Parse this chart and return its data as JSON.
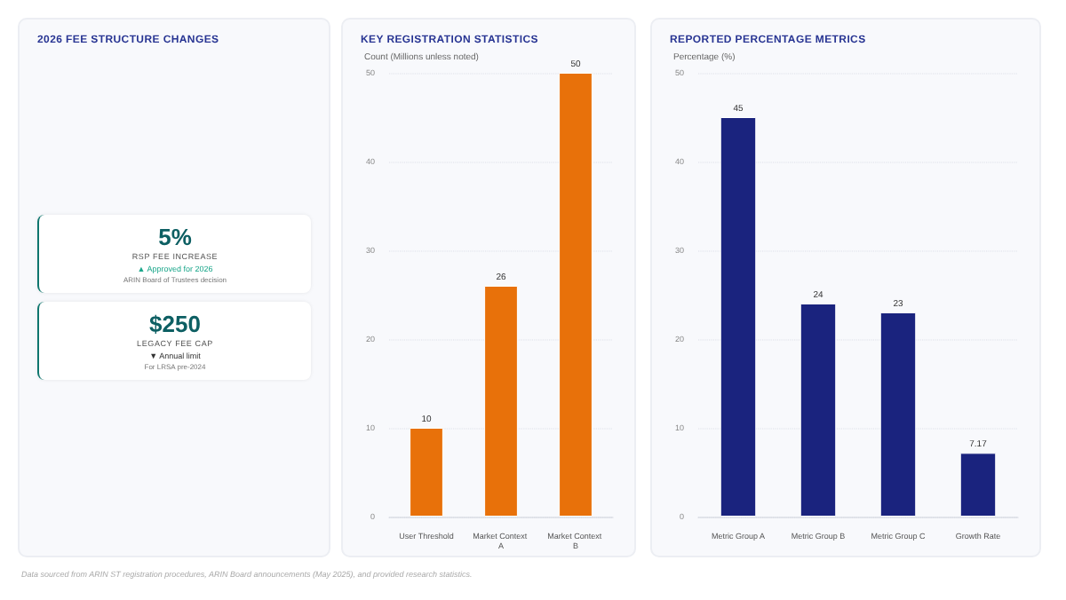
{
  "chart_data": [
    {
      "type": "other",
      "title": "2026 FEE STRUCTURE CHANGES",
      "annotations": [
        "5%",
        "RSP FEE INCREASE",
        "▲ Approved for 2026",
        "ARIN Board of Trustees decision",
        "$250",
        "LEGACY FEE CAP",
        "▼ Annual limit",
        "For LRSA pre-2024"
      ]
    },
    {
      "type": "bar",
      "title": "KEY REGISTRATION STATISTICS",
      "ylabel": "Count (Millions unless noted)",
      "categories": [
        "User Threshold",
        "Market Context A",
        "Market Context B"
      ],
      "values": [
        10,
        26,
        50
      ],
      "color": "#e8710a",
      "ylim": [
        0,
        50
      ],
      "yticks": [
        0,
        10,
        20,
        30,
        40,
        50
      ],
      "grid": "y",
      "data_labels": true
    },
    {
      "type": "bar",
      "title": "REPORTED PERCENTAGE METRICS",
      "ylabel": "Percentage (%)",
      "categories": [
        "Metric Group A",
        "Metric Group B",
        "Metric Group C",
        "Growth Rate"
      ],
      "values": [
        45,
        24,
        23,
        7.17
      ],
      "color": "#1a237e",
      "ylim": [
        0,
        50
      ],
      "yticks": [
        0,
        10,
        20,
        30,
        40,
        50
      ],
      "grid": "y",
      "data_labels": true,
      "annotations": [
        "Data sourced from ARIN ST registration procedures, ARIN Board announcements (May 2025), and provided research statistics."
      ]
    }
  ]
}
